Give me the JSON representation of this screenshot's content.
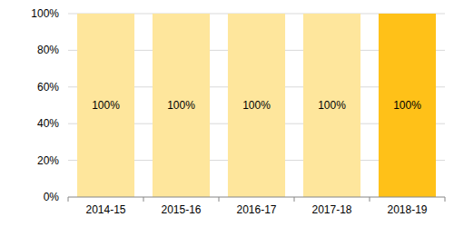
{
  "chart_data": {
    "type": "bar",
    "categories": [
      "2014-15",
      "2015-16",
      "2016-17",
      "2017-18",
      "2018-19"
    ],
    "values": [
      100,
      100,
      100,
      100,
      100
    ],
    "value_labels": [
      "100%",
      "100%",
      "100%",
      "100%",
      "100%"
    ],
    "colors": [
      "#fee69c",
      "#fee69c",
      "#fee69c",
      "#fee69c",
      "#ffc118"
    ],
    "ylim": [
      0,
      100
    ],
    "yticks": [
      {
        "value": 0,
        "label": "0%"
      },
      {
        "value": 20,
        "label": "20%"
      },
      {
        "value": 40,
        "label": "40%"
      },
      {
        "value": 60,
        "label": "60%"
      },
      {
        "value": 80,
        "label": "80%"
      },
      {
        "value": 100,
        "label": "100%"
      }
    ],
    "grid": true,
    "data_labels": true
  }
}
